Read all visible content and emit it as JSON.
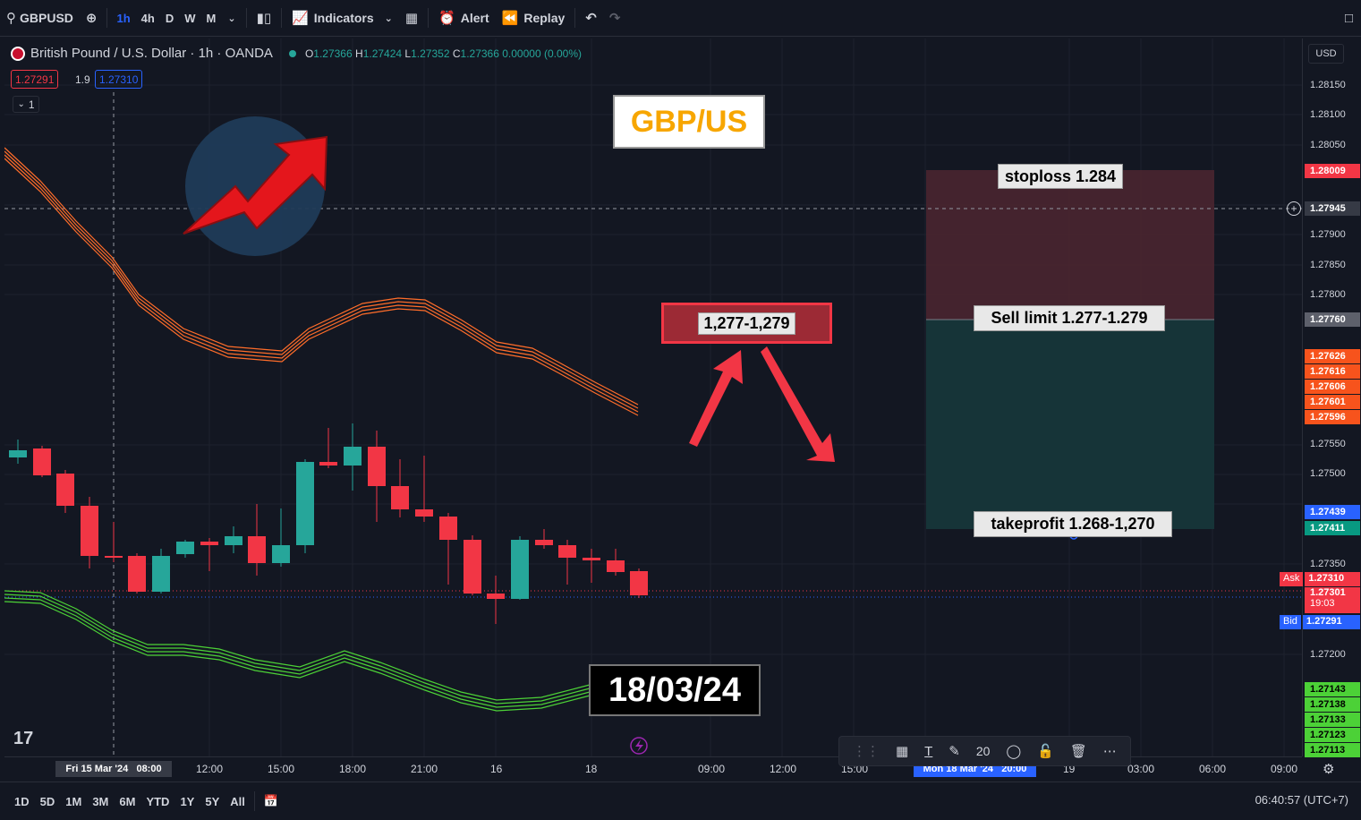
{
  "toolbar": {
    "symbol": "GBPUSD",
    "intervals": [
      "1h",
      "4h",
      "D",
      "W",
      "M"
    ],
    "active_interval": "1h",
    "indicators_label": "Indicators",
    "alert_label": "Alert",
    "replay_label": "Replay"
  },
  "legend": {
    "title": "British Pound / U.S. Dollar · 1h · OANDA",
    "open_key": "O",
    "open": "1.27366",
    "high_key": "H",
    "high": "1.27424",
    "low_key": "L",
    "low": "1.27352",
    "close_key": "C",
    "close": "1.27366",
    "change": "0.00000 (0.00%)",
    "sell_price": "1.27291",
    "spread": "1.9",
    "buy_price": "1.27310",
    "collapse_count": "1"
  },
  "annotations": {
    "pair_title": "GBP/US",
    "entry_range": "1,277-1,279",
    "date_label": "18/03/24",
    "stoploss": "stoploss 1.284",
    "sell_limit": "Sell limit 1.277-1.279",
    "takeprofit": "takeprofit 1.268-1,270"
  },
  "price_scale": {
    "currency": "USD",
    "ticks": [
      "1.28150",
      "1.28100",
      "1.28050",
      "1.27900",
      "1.27850",
      "1.27800",
      "1.27550",
      "1.27500",
      "1.27350",
      "1.27200"
    ],
    "crosshair_price": "1.27945",
    "stop_tag": "1.28009",
    "entry_tag": "1.27760",
    "orange_tags": [
      "1.27626",
      "1.27616",
      "1.27606",
      "1.27601",
      "1.27596"
    ],
    "tp_blue_tag": "1.27439",
    "tp_green_tag": "1.27411",
    "ask_label": "Ask",
    "ask_price": "1.27310",
    "last_price": "1.27301",
    "countdown": "19:03",
    "bid_label": "Bid",
    "bid_price": "1.27291",
    "green_tags": [
      "1.27143",
      "1.27138",
      "1.27133",
      "1.27123",
      "1.27113"
    ]
  },
  "time_scale": {
    "labels": [
      "12:00",
      "15:00",
      "18:00",
      "21:00",
      "16",
      "18",
      "09:00",
      "12:00",
      "15:00",
      "19",
      "03:00",
      "06:00",
      "09:00"
    ],
    "crosshair_time": "Fri 15 Mar '24   08:00",
    "range_time": "Mon 18 Mar '24   20:00"
  },
  "bottombar": {
    "ranges": [
      "1D",
      "5D",
      "1M",
      "3M",
      "6M",
      "YTD",
      "1Y",
      "5Y",
      "All"
    ],
    "clock": "06:40:57 (UTC+7)"
  },
  "draw_toolbar": {
    "font_size": "20"
  },
  "colors": {
    "bull": "#26a69a",
    "bear": "#f23645",
    "orange_band": "#ff6d2a",
    "green_band": "#4cd137",
    "stop_zone": "#4a2530",
    "target_zone": "#16363a"
  }
}
